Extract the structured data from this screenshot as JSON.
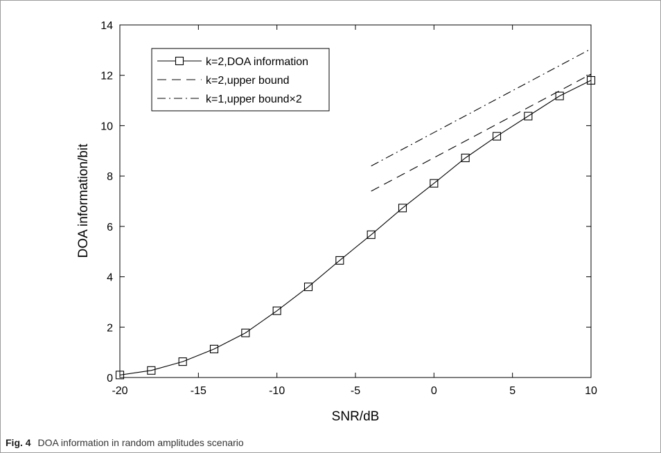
{
  "caption": {
    "label": "Fig. 4",
    "text": "DOA information in random amplitudes scenario"
  },
  "chart_data": {
    "type": "line",
    "title": "",
    "xlabel": "SNR/dB",
    "ylabel": "DOA information/bit",
    "xlim": [
      -20,
      10
    ],
    "ylim": [
      0,
      14
    ],
    "xticks": [
      -20,
      -15,
      -10,
      -5,
      0,
      5,
      10
    ],
    "xtick_labels": [
      "-20",
      "-15",
      "-10",
      "-5",
      "0",
      "5",
      "10"
    ],
    "yticks": [
      0,
      2,
      4,
      6,
      8,
      10,
      12,
      14
    ],
    "ytick_labels": [
      "0",
      "2",
      "4",
      "6",
      "8",
      "10",
      "12",
      "14"
    ],
    "grid": false,
    "legend_position": "top-left",
    "series": [
      {
        "name": "k=2,DOA information",
        "line_style": "solid",
        "marker": "square",
        "color": "#000000",
        "x": [
          -20,
          -18,
          -16,
          -14,
          -12,
          -10,
          -8,
          -6,
          -4,
          -2,
          0,
          2,
          4,
          6,
          8,
          10
        ],
        "y": [
          0.1,
          0.28,
          0.63,
          1.13,
          1.77,
          2.65,
          3.6,
          4.65,
          5.67,
          6.73,
          7.71,
          8.72,
          9.58,
          10.38,
          11.18,
          11.8
        ]
      },
      {
        "name": "k=2,upper bound",
        "line_style": "dashed",
        "marker": "none",
        "color": "#000000",
        "x": [
          -4,
          10
        ],
        "y": [
          7.4,
          12.05
        ]
      },
      {
        "name": "k=1,upper bound×2",
        "line_style": "dashdot",
        "marker": "none",
        "color": "#000000",
        "x": [
          -4,
          10
        ],
        "y": [
          8.4,
          13.05
        ]
      }
    ]
  }
}
